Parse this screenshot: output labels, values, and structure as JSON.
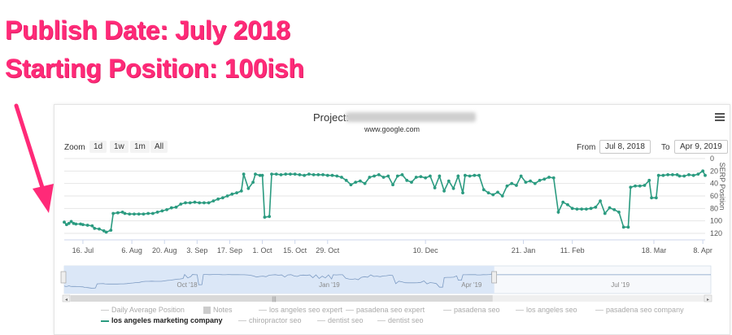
{
  "headline": {
    "line1": "Publish Date: July 2018",
    "line2": "Starting Position: 100ish"
  },
  "colors": {
    "headline": "#ff2a78",
    "arrow": "#ff2a78",
    "series": "#2b9b80",
    "navigator_fill": "#dbe7f7"
  },
  "icons": [
    "menu-icon"
  ],
  "project": {
    "label": "Project:",
    "host": "www.google.com"
  },
  "toolbar": {
    "zoom_label": "Zoom",
    "zoom_buttons": [
      "1d",
      "1w",
      "1m",
      "All"
    ],
    "from_label": "From",
    "from_value": "Jul 8, 2018",
    "to_label": "To",
    "to_value": "Apr 9, 2019"
  },
  "navigator": {
    "labels": [
      "Oct '18",
      "Jan '19",
      "Apr '19",
      "Jul '19"
    ],
    "selected_fraction": [
      0.0,
      0.665
    ]
  },
  "legend": [
    {
      "label": "Daily Average Position",
      "kind": "line",
      "active": false
    },
    {
      "label": "Notes",
      "kind": "box",
      "active": false
    },
    {
      "label": "los angeles seo expert",
      "kind": "line",
      "active": false
    },
    {
      "label": "pasadena seo expert",
      "kind": "line",
      "active": false
    },
    {
      "label": "pasadena seo",
      "kind": "line",
      "active": false
    },
    {
      "label": "los angeles seo",
      "kind": "line",
      "active": false
    },
    {
      "label": "pasadena seo company",
      "kind": "line",
      "active": false
    },
    {
      "label": "los angeles marketing company",
      "kind": "line",
      "active": true
    },
    {
      "label": "chiropractor seo",
      "kind": "line",
      "active": false
    },
    {
      "label": "dentist seo",
      "kind": "line",
      "active": false
    },
    {
      "label": "dentist seo",
      "kind": "line",
      "active": false
    }
  ],
  "chart_data": {
    "type": "line",
    "title": "",
    "xlabel": "",
    "ylabel": "SERP Position",
    "y_reversed": true,
    "ylim": [
      0,
      120
    ],
    "yticks": [
      0,
      20,
      40,
      60,
      80,
      100,
      120
    ],
    "xlim": [
      "2018-07-08",
      "2019-04-09"
    ],
    "xticks": [
      {
        "date": "2018-07-16",
        "label": "16. Jul"
      },
      {
        "date": "2018-08-06",
        "label": "6. Aug"
      },
      {
        "date": "2018-08-20",
        "label": "20. Aug"
      },
      {
        "date": "2018-09-03",
        "label": "3. Sep"
      },
      {
        "date": "2018-09-17",
        "label": "17. Sep"
      },
      {
        "date": "2018-10-01",
        "label": "1. Oct"
      },
      {
        "date": "2018-10-15",
        "label": "15. Oct"
      },
      {
        "date": "2018-10-29",
        "label": "29. Oct"
      },
      {
        "date": "2018-12-10",
        "label": "10. Dec"
      },
      {
        "date": "2019-01-21",
        "label": "21. Jan"
      },
      {
        "date": "2019-02-11",
        "label": "11. Feb"
      },
      {
        "date": "2019-03-18",
        "label": "18. Mar"
      },
      {
        "date": "2019-04-08",
        "label": "8. Apr"
      }
    ],
    "grid": true,
    "series": [
      {
        "name": "los angeles marketing company",
        "points": [
          [
            "2018-07-08",
            102
          ],
          [
            "2018-07-09",
            106
          ],
          [
            "2018-07-10",
            104
          ],
          [
            "2018-07-11",
            101
          ],
          [
            "2018-07-12",
            104
          ],
          [
            "2018-07-13",
            105
          ],
          [
            "2018-07-15",
            105
          ],
          [
            "2018-07-16",
            106
          ],
          [
            "2018-07-18",
            107
          ],
          [
            "2018-07-20",
            108
          ],
          [
            "2018-07-21",
            112
          ],
          [
            "2018-07-23",
            113
          ],
          [
            "2018-07-25",
            116
          ],
          [
            "2018-07-26",
            118
          ],
          [
            "2018-07-28",
            115
          ],
          [
            "2018-07-29",
            88
          ],
          [
            "2018-07-31",
            87
          ],
          [
            "2018-08-02",
            86
          ],
          [
            "2018-08-03",
            88
          ],
          [
            "2018-08-05",
            89
          ],
          [
            "2018-08-07",
            89
          ],
          [
            "2018-08-09",
            89
          ],
          [
            "2018-08-11",
            89
          ],
          [
            "2018-08-13",
            88
          ],
          [
            "2018-08-15",
            88
          ],
          [
            "2018-08-17",
            86
          ],
          [
            "2018-08-19",
            84
          ],
          [
            "2018-08-21",
            82
          ],
          [
            "2018-08-23",
            79
          ],
          [
            "2018-08-25",
            78
          ],
          [
            "2018-08-27",
            73
          ],
          [
            "2018-08-29",
            71
          ],
          [
            "2018-08-31",
            71
          ],
          [
            "2018-09-02",
            70
          ],
          [
            "2018-09-04",
            71
          ],
          [
            "2018-09-06",
            71
          ],
          [
            "2018-09-08",
            71
          ],
          [
            "2018-09-10",
            68
          ],
          [
            "2018-09-12",
            65
          ],
          [
            "2018-09-14",
            63
          ],
          [
            "2018-09-16",
            60
          ],
          [
            "2018-09-18",
            57
          ],
          [
            "2018-09-20",
            55
          ],
          [
            "2018-09-22",
            52
          ],
          [
            "2018-09-23",
            25
          ],
          [
            "2018-09-25",
            48
          ],
          [
            "2018-09-27",
            38
          ],
          [
            "2018-09-28",
            25
          ],
          [
            "2018-09-30",
            27
          ],
          [
            "2018-10-01",
            27
          ],
          [
            "2018-10-02",
            94
          ],
          [
            "2018-10-04",
            93
          ],
          [
            "2018-10-05",
            25
          ],
          [
            "2018-10-07",
            25
          ],
          [
            "2018-10-09",
            26
          ],
          [
            "2018-10-11",
            25
          ],
          [
            "2018-10-13",
            25
          ],
          [
            "2018-10-15",
            25
          ],
          [
            "2018-10-17",
            26
          ],
          [
            "2018-10-19",
            27
          ],
          [
            "2018-10-21",
            25
          ],
          [
            "2018-10-23",
            26
          ],
          [
            "2018-10-25",
            26
          ],
          [
            "2018-10-27",
            26
          ],
          [
            "2018-10-29",
            27
          ],
          [
            "2018-10-31",
            27
          ],
          [
            "2018-11-02",
            28
          ],
          [
            "2018-11-04",
            30
          ],
          [
            "2018-11-06",
            35
          ],
          [
            "2018-11-08",
            42
          ],
          [
            "2018-11-10",
            38
          ],
          [
            "2018-11-12",
            36
          ],
          [
            "2018-11-14",
            40
          ],
          [
            "2018-11-16",
            30
          ],
          [
            "2018-11-18",
            28
          ],
          [
            "2018-11-20",
            26
          ],
          [
            "2018-11-22",
            30
          ],
          [
            "2018-11-24",
            28
          ],
          [
            "2018-11-26",
            42
          ],
          [
            "2018-11-28",
            28
          ],
          [
            "2018-11-30",
            26
          ],
          [
            "2018-12-02",
            35
          ],
          [
            "2018-12-04",
            38
          ],
          [
            "2018-12-06",
            30
          ],
          [
            "2018-12-08",
            29
          ],
          [
            "2018-12-10",
            31
          ],
          [
            "2018-12-12",
            28
          ],
          [
            "2018-12-14",
            47
          ],
          [
            "2018-12-16",
            28
          ],
          [
            "2018-12-18",
            52
          ],
          [
            "2018-12-20",
            36
          ],
          [
            "2018-12-22",
            48
          ],
          [
            "2018-12-24",
            28
          ],
          [
            "2018-12-26",
            55
          ],
          [
            "2018-12-27",
            27
          ],
          [
            "2018-12-29",
            28
          ],
          [
            "2018-12-31",
            27
          ],
          [
            "2019-01-02",
            27
          ],
          [
            "2019-01-04",
            50
          ],
          [
            "2019-01-06",
            55
          ],
          [
            "2019-01-08",
            58
          ],
          [
            "2019-01-10",
            54
          ],
          [
            "2019-01-12",
            60
          ],
          [
            "2019-01-14",
            44
          ],
          [
            "2019-01-16",
            40
          ],
          [
            "2019-01-18",
            43
          ],
          [
            "2019-01-20",
            28
          ],
          [
            "2019-01-22",
            38
          ],
          [
            "2019-01-24",
            36
          ],
          [
            "2019-01-26",
            40
          ],
          [
            "2019-01-28",
            35
          ],
          [
            "2019-01-30",
            33
          ],
          [
            "2019-02-01",
            30
          ],
          [
            "2019-02-03",
            31
          ],
          [
            "2019-02-05",
            86
          ],
          [
            "2019-02-07",
            70
          ],
          [
            "2019-02-09",
            74
          ],
          [
            "2019-02-11",
            80
          ],
          [
            "2019-02-13",
            81
          ],
          [
            "2019-02-15",
            81
          ],
          [
            "2019-02-17",
            81
          ],
          [
            "2019-02-19",
            80
          ],
          [
            "2019-02-21",
            78
          ],
          [
            "2019-02-23",
            68
          ],
          [
            "2019-02-25",
            88
          ],
          [
            "2019-02-27",
            79
          ],
          [
            "2019-03-01",
            82
          ],
          [
            "2019-03-03",
            86
          ],
          [
            "2019-03-05",
            110
          ],
          [
            "2019-03-07",
            110
          ],
          [
            "2019-03-08",
            46
          ],
          [
            "2019-03-10",
            44
          ],
          [
            "2019-03-12",
            44
          ],
          [
            "2019-03-14",
            43
          ],
          [
            "2019-03-16",
            35
          ],
          [
            "2019-03-17",
            63
          ],
          [
            "2019-03-19",
            63
          ],
          [
            "2019-03-20",
            27
          ],
          [
            "2019-03-22",
            27
          ],
          [
            "2019-03-24",
            26
          ],
          [
            "2019-03-26",
            26
          ],
          [
            "2019-03-28",
            26
          ],
          [
            "2019-03-29",
            28
          ],
          [
            "2019-03-31",
            28
          ],
          [
            "2019-04-02",
            26
          ],
          [
            "2019-04-04",
            27
          ],
          [
            "2019-04-06",
            25
          ],
          [
            "2019-04-08",
            20
          ],
          [
            "2019-04-09",
            27
          ]
        ]
      }
    ]
  }
}
